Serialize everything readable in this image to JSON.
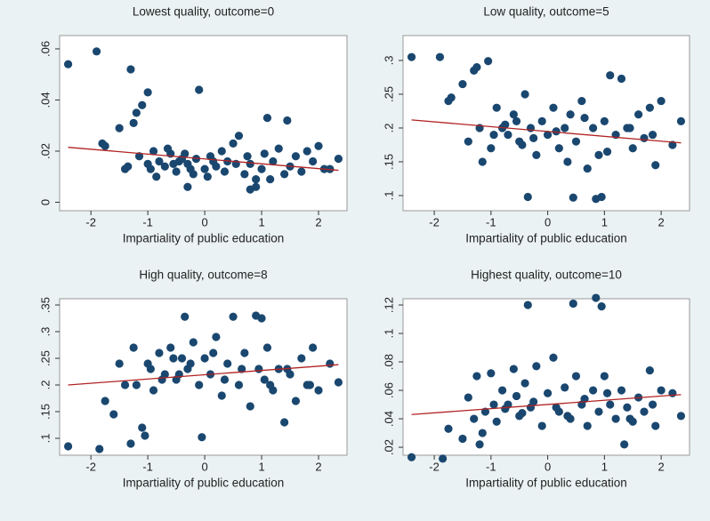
{
  "chart_data": [
    {
      "type": "scatter",
      "title": "Lowest quality, outcome=0",
      "xlabel": "Impartiality of public education",
      "xlim": [
        -2.55,
        2.5
      ],
      "xticks": [
        -2,
        -1,
        0,
        1,
        2
      ],
      "ylim": [
        -0.0033,
        0.0652
      ],
      "yticks": [
        0,
        {
          "value": 0.02,
          "label": ".02"
        },
        {
          "value": 0.04,
          "label": ".04"
        },
        {
          "value": 0.06,
          "label": ".06"
        }
      ],
      "color": "#1a476f",
      "x": [
        -2.4,
        -1.9,
        -1.8,
        -1.75,
        -1.5,
        -1.4,
        -1.3,
        -1.25,
        -1.2,
        -1.1,
        -1.0,
        -0.9,
        -0.8,
        -0.7,
        -0.6,
        -0.5,
        -0.4,
        -0.3,
        -0.2,
        -0.1,
        0,
        0.1,
        0.2,
        0.3,
        0.4,
        0.5,
        0.6,
        0.7,
        0.8,
        0.9,
        1.0,
        1.05,
        1.1,
        1.2,
        1.3,
        1.4,
        1.45,
        1.5,
        1.6,
        1.7,
        1.8,
        1.9,
        2.0,
        2.1,
        2.2,
        2.35,
        -1.35,
        -1.15,
        -0.95,
        -0.85,
        -0.65,
        -0.45,
        -0.35,
        -0.25,
        -0.15,
        0.05,
        0.35,
        0.55,
        0.75,
        1.15,
        -0.3,
        0.8,
        0.9,
        -1.0,
        -0.55,
        0.15
      ],
      "y": [
        0.054,
        0.059,
        0.023,
        0.022,
        0.029,
        0.013,
        0.052,
        0.031,
        0.035,
        0.038,
        0.043,
        0.02,
        0.016,
        0.014,
        0.019,
        0.012,
        0.017,
        0.015,
        0.011,
        0.044,
        0.013,
        0.018,
        0.014,
        0.02,
        0.016,
        0.023,
        0.026,
        0.011,
        0.015,
        0.006,
        0.013,
        0.019,
        0.033,
        0.016,
        0.021,
        0.011,
        0.032,
        0.014,
        0.018,
        0.012,
        0.02,
        0.016,
        0.022,
        0.013,
        0.013,
        0.017,
        0.014,
        0.018,
        0.013,
        0.01,
        0.021,
        0.016,
        0.019,
        0.013,
        0.017,
        0.01,
        0.012,
        0.015,
        0.018,
        0.009,
        0.006,
        0.005,
        0.009,
        0.015,
        0.015,
        0.016
      ],
      "fit": {
        "x": [
          -2.4,
          2.35
        ],
        "y": [
          0.0215,
          0.0125
        ],
        "color": "#b22222"
      }
    },
    {
      "type": "scatter",
      "title": "Low quality, outcome=5",
      "xlabel": "Impartiality of public education",
      "xlim": [
        -2.55,
        2.5
      ],
      "xticks": [
        -2,
        -1,
        0,
        1,
        2
      ],
      "ylim": [
        0.0776,
        0.3368
      ],
      "yticks": [
        {
          "value": 0.1,
          "label": ".1"
        },
        {
          "value": 0.15,
          "label": ".15"
        },
        {
          "value": 0.2,
          "label": ".2"
        },
        {
          "value": 0.25,
          "label": ".25"
        },
        {
          "value": 0.3,
          "label": ".3"
        }
      ],
      "color": "#1a476f",
      "x": [
        -2.4,
        -1.9,
        -1.75,
        -1.7,
        -1.5,
        -1.4,
        -1.3,
        -1.25,
        -1.15,
        -1.05,
        -1.0,
        -0.9,
        -0.8,
        -0.7,
        -0.6,
        -0.5,
        -0.4,
        -0.35,
        -0.3,
        -0.2,
        -0.1,
        0,
        0.1,
        0.2,
        0.3,
        0.4,
        0.45,
        0.5,
        0.6,
        0.7,
        0.8,
        0.85,
        0.9,
        0.95,
        1.0,
        1.1,
        1.2,
        1.3,
        1.4,
        1.5,
        1.6,
        1.7,
        1.8,
        1.9,
        2.0,
        2.2,
        2.35,
        -1.2,
        -0.95,
        -0.75,
        -0.55,
        -0.45,
        -0.25,
        0.15,
        0.35,
        0.65,
        1.05,
        1.45,
        1.85
      ],
      "y": [
        0.305,
        0.305,
        0.24,
        0.245,
        0.265,
        0.18,
        0.285,
        0.29,
        0.15,
        0.299,
        0.17,
        0.23,
        0.2,
        0.19,
        0.22,
        0.18,
        0.25,
        0.098,
        0.2,
        0.16,
        0.21,
        0.19,
        0.23,
        0.17,
        0.2,
        0.22,
        0.097,
        0.18,
        0.24,
        0.14,
        0.2,
        0.095,
        0.16,
        0.098,
        0.21,
        0.278,
        0.19,
        0.273,
        0.2,
        0.17,
        0.22,
        0.185,
        0.23,
        0.145,
        0.24,
        0.175,
        0.21,
        0.2,
        0.19,
        0.205,
        0.21,
        0.175,
        0.185,
        0.195,
        0.15,
        0.215,
        0.165,
        0.2,
        0.19
      ],
      "fit": {
        "x": [
          -2.4,
          2.35
        ],
        "y": [
          0.212,
          0.178
        ],
        "color": "#b22222"
      }
    },
    {
      "type": "scatter",
      "title": "High quality, outcome=8",
      "xlabel": "Impartiality of public education",
      "xlim": [
        -2.55,
        2.5
      ],
      "xticks": [
        -2,
        -1,
        0,
        1,
        2
      ],
      "ylim": [
        0.0683,
        0.3617
      ],
      "yticks": [
        {
          "value": 0.1,
          "label": ".1"
        },
        {
          "value": 0.15,
          "label": ".15"
        },
        {
          "value": 0.2,
          "label": ".2"
        },
        {
          "value": 0.25,
          "label": ".25"
        },
        {
          "value": 0.3,
          "label": ".3"
        },
        {
          "value": 0.35,
          "label": ".35"
        }
      ],
      "color": "#1a476f",
      "x": [
        -2.4,
        -1.85,
        -1.75,
        -1.6,
        -1.5,
        -1.4,
        -1.3,
        -1.25,
        -1.1,
        -1.05,
        -1.0,
        -0.9,
        -0.8,
        -0.7,
        -0.6,
        -0.5,
        -0.4,
        -0.35,
        -0.3,
        -0.2,
        -0.1,
        -0.05,
        0,
        0.1,
        0.2,
        0.3,
        0.4,
        0.5,
        0.6,
        0.7,
        0.8,
        0.9,
        0.95,
        1.0,
        1.05,
        1.1,
        1.2,
        1.3,
        1.4,
        1.5,
        1.6,
        1.7,
        1.8,
        1.9,
        2.0,
        2.2,
        2.35,
        -1.2,
        -0.95,
        -0.75,
        -0.55,
        -0.45,
        -0.25,
        0.15,
        0.35,
        0.65,
        1.15,
        1.45,
        1.85
      ],
      "y": [
        0.085,
        0.08,
        0.17,
        0.145,
        0.24,
        0.2,
        0.09,
        0.27,
        0.12,
        0.105,
        0.24,
        0.19,
        0.26,
        0.22,
        0.27,
        0.21,
        0.25,
        0.328,
        0.23,
        0.28,
        0.2,
        0.102,
        0.25,
        0.22,
        0.29,
        0.18,
        0.24,
        0.328,
        0.2,
        0.26,
        0.16,
        0.33,
        0.23,
        0.325,
        0.21,
        0.27,
        0.19,
        0.23,
        0.13,
        0.22,
        0.17,
        0.25,
        0.2,
        0.27,
        0.19,
        0.24,
        0.205,
        0.2,
        0.23,
        0.21,
        0.25,
        0.22,
        0.24,
        0.26,
        0.21,
        0.23,
        0.2,
        0.23,
        0.2
      ],
      "fit": {
        "x": [
          -2.4,
          2.35
        ],
        "y": [
          0.2,
          0.238
        ],
        "color": "#b22222"
      }
    },
    {
      "type": "scatter",
      "title": "Highest quality, outcome=10",
      "xlabel": "Impartiality of public education",
      "xlim": [
        -2.55,
        2.5
      ],
      "xticks": [
        -2,
        -1,
        0,
        1,
        2
      ],
      "ylim": [
        0.0144,
        0.1244
      ],
      "yticks": [
        {
          "value": 0.02,
          "label": ".02"
        },
        {
          "value": 0.04,
          "label": ".04"
        },
        {
          "value": 0.06,
          "label": ".06"
        },
        {
          "value": 0.08,
          "label": ".08"
        },
        {
          "value": 0.1,
          "label": ".1"
        },
        {
          "value": 0.12,
          "label": ".12"
        }
      ],
      "color": "#1a476f",
      "x": [
        -2.4,
        -1.85,
        -1.75,
        -1.5,
        -1.4,
        -1.3,
        -1.25,
        -1.2,
        -1.1,
        -1.0,
        -0.9,
        -0.8,
        -0.7,
        -0.6,
        -0.5,
        -0.4,
        -0.35,
        -0.3,
        -0.2,
        -0.1,
        0,
        0.1,
        0.2,
        0.3,
        0.4,
        0.45,
        0.5,
        0.6,
        0.7,
        0.8,
        0.85,
        0.9,
        0.95,
        1.0,
        1.1,
        1.2,
        1.3,
        1.35,
        1.4,
        1.5,
        1.6,
        1.7,
        1.8,
        1.9,
        2.0,
        2.2,
        2.35,
        -1.15,
        -0.95,
        -0.75,
        -0.55,
        -0.45,
        -0.25,
        0.15,
        0.35,
        0.65,
        1.05,
        1.45,
        1.85
      ],
      "y": [
        0.013,
        0.012,
        0.033,
        0.026,
        0.055,
        0.04,
        0.07,
        0.022,
        0.045,
        0.072,
        0.038,
        0.06,
        0.05,
        0.075,
        0.042,
        0.065,
        0.12,
        0.048,
        0.077,
        0.035,
        0.058,
        0.083,
        0.045,
        0.062,
        0.04,
        0.121,
        0.07,
        0.05,
        0.035,
        0.06,
        0.125,
        0.045,
        0.119,
        0.07,
        0.05,
        0.04,
        0.06,
        0.022,
        0.048,
        0.038,
        0.055,
        0.045,
        0.074,
        0.035,
        0.06,
        0.058,
        0.042,
        0.03,
        0.05,
        0.047,
        0.056,
        0.044,
        0.052,
        0.048,
        0.042,
        0.054,
        0.058,
        0.04,
        0.05
      ],
      "fit": {
        "x": [
          -2.4,
          2.35
        ],
        "y": [
          0.043,
          0.057
        ],
        "color": "#b22222"
      }
    }
  ]
}
